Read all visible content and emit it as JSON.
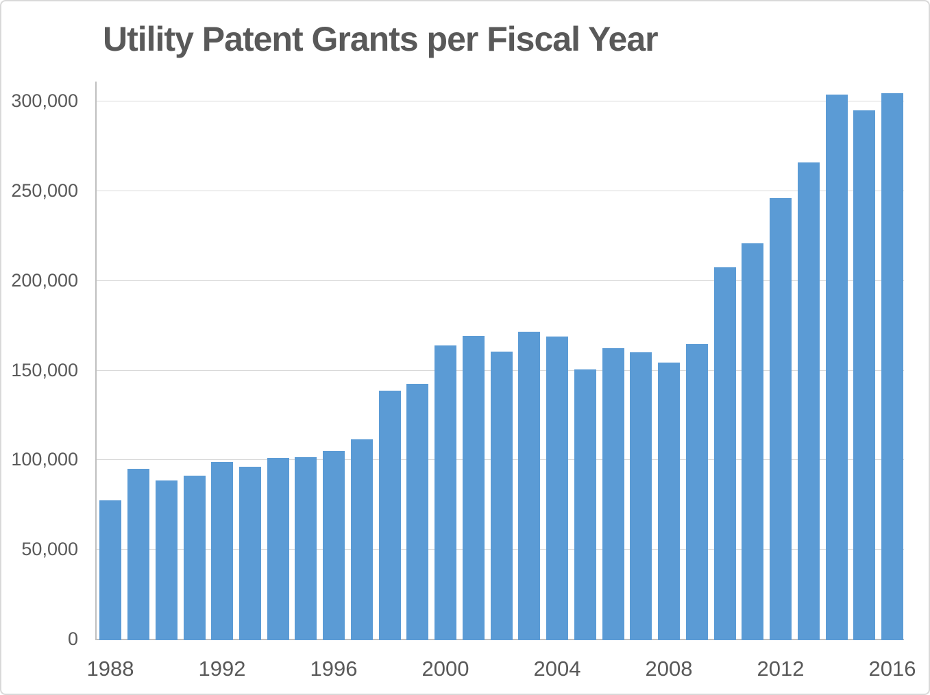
{
  "chart_data": {
    "type": "bar",
    "title": "Utility Patent Grants per Fiscal Year",
    "xlabel": "",
    "ylabel": "",
    "categories": [
      1988,
      1989,
      1990,
      1991,
      1992,
      1993,
      1994,
      1995,
      1996,
      1997,
      1998,
      1999,
      2000,
      2001,
      2002,
      2003,
      2004,
      2005,
      2006,
      2007,
      2008,
      2009,
      2010,
      2011,
      2012,
      2013,
      2014,
      2015,
      2016
    ],
    "values": [
      77900,
      95700,
      89000,
      91900,
      99500,
      96800,
      101700,
      102200,
      105400,
      112100,
      139300,
      142800,
      164500,
      169800,
      161100,
      171900,
      169400,
      151000,
      162700,
      160600,
      154900,
      165300,
      208000,
      221400,
      246500,
      266400,
      304100,
      295500,
      304900
    ],
    "series_name": "Utility Patent Grants",
    "ylim": [
      0,
      310000
    ],
    "y_tick_interval": 50000,
    "y_ticks": {
      "values": [
        0,
        50000,
        100000,
        150000,
        200000,
        250000,
        300000
      ],
      "labels": [
        "0",
        "50,000",
        "100,000",
        "150,000",
        "200,000",
        "250,000",
        "300,000"
      ]
    },
    "x_tick_labels": [
      "1988",
      "1992",
      "1996",
      "2000",
      "2004",
      "2008",
      "2012",
      "2016"
    ],
    "grid": true,
    "legend": false,
    "colors": {
      "bar_fill": "#5b9bd5",
      "gridline": "#d9d9d9",
      "axis_line": "#bfbfbf",
      "text": "#595959",
      "background": "#ffffff",
      "canvas_border": "#d9d9d9"
    }
  }
}
